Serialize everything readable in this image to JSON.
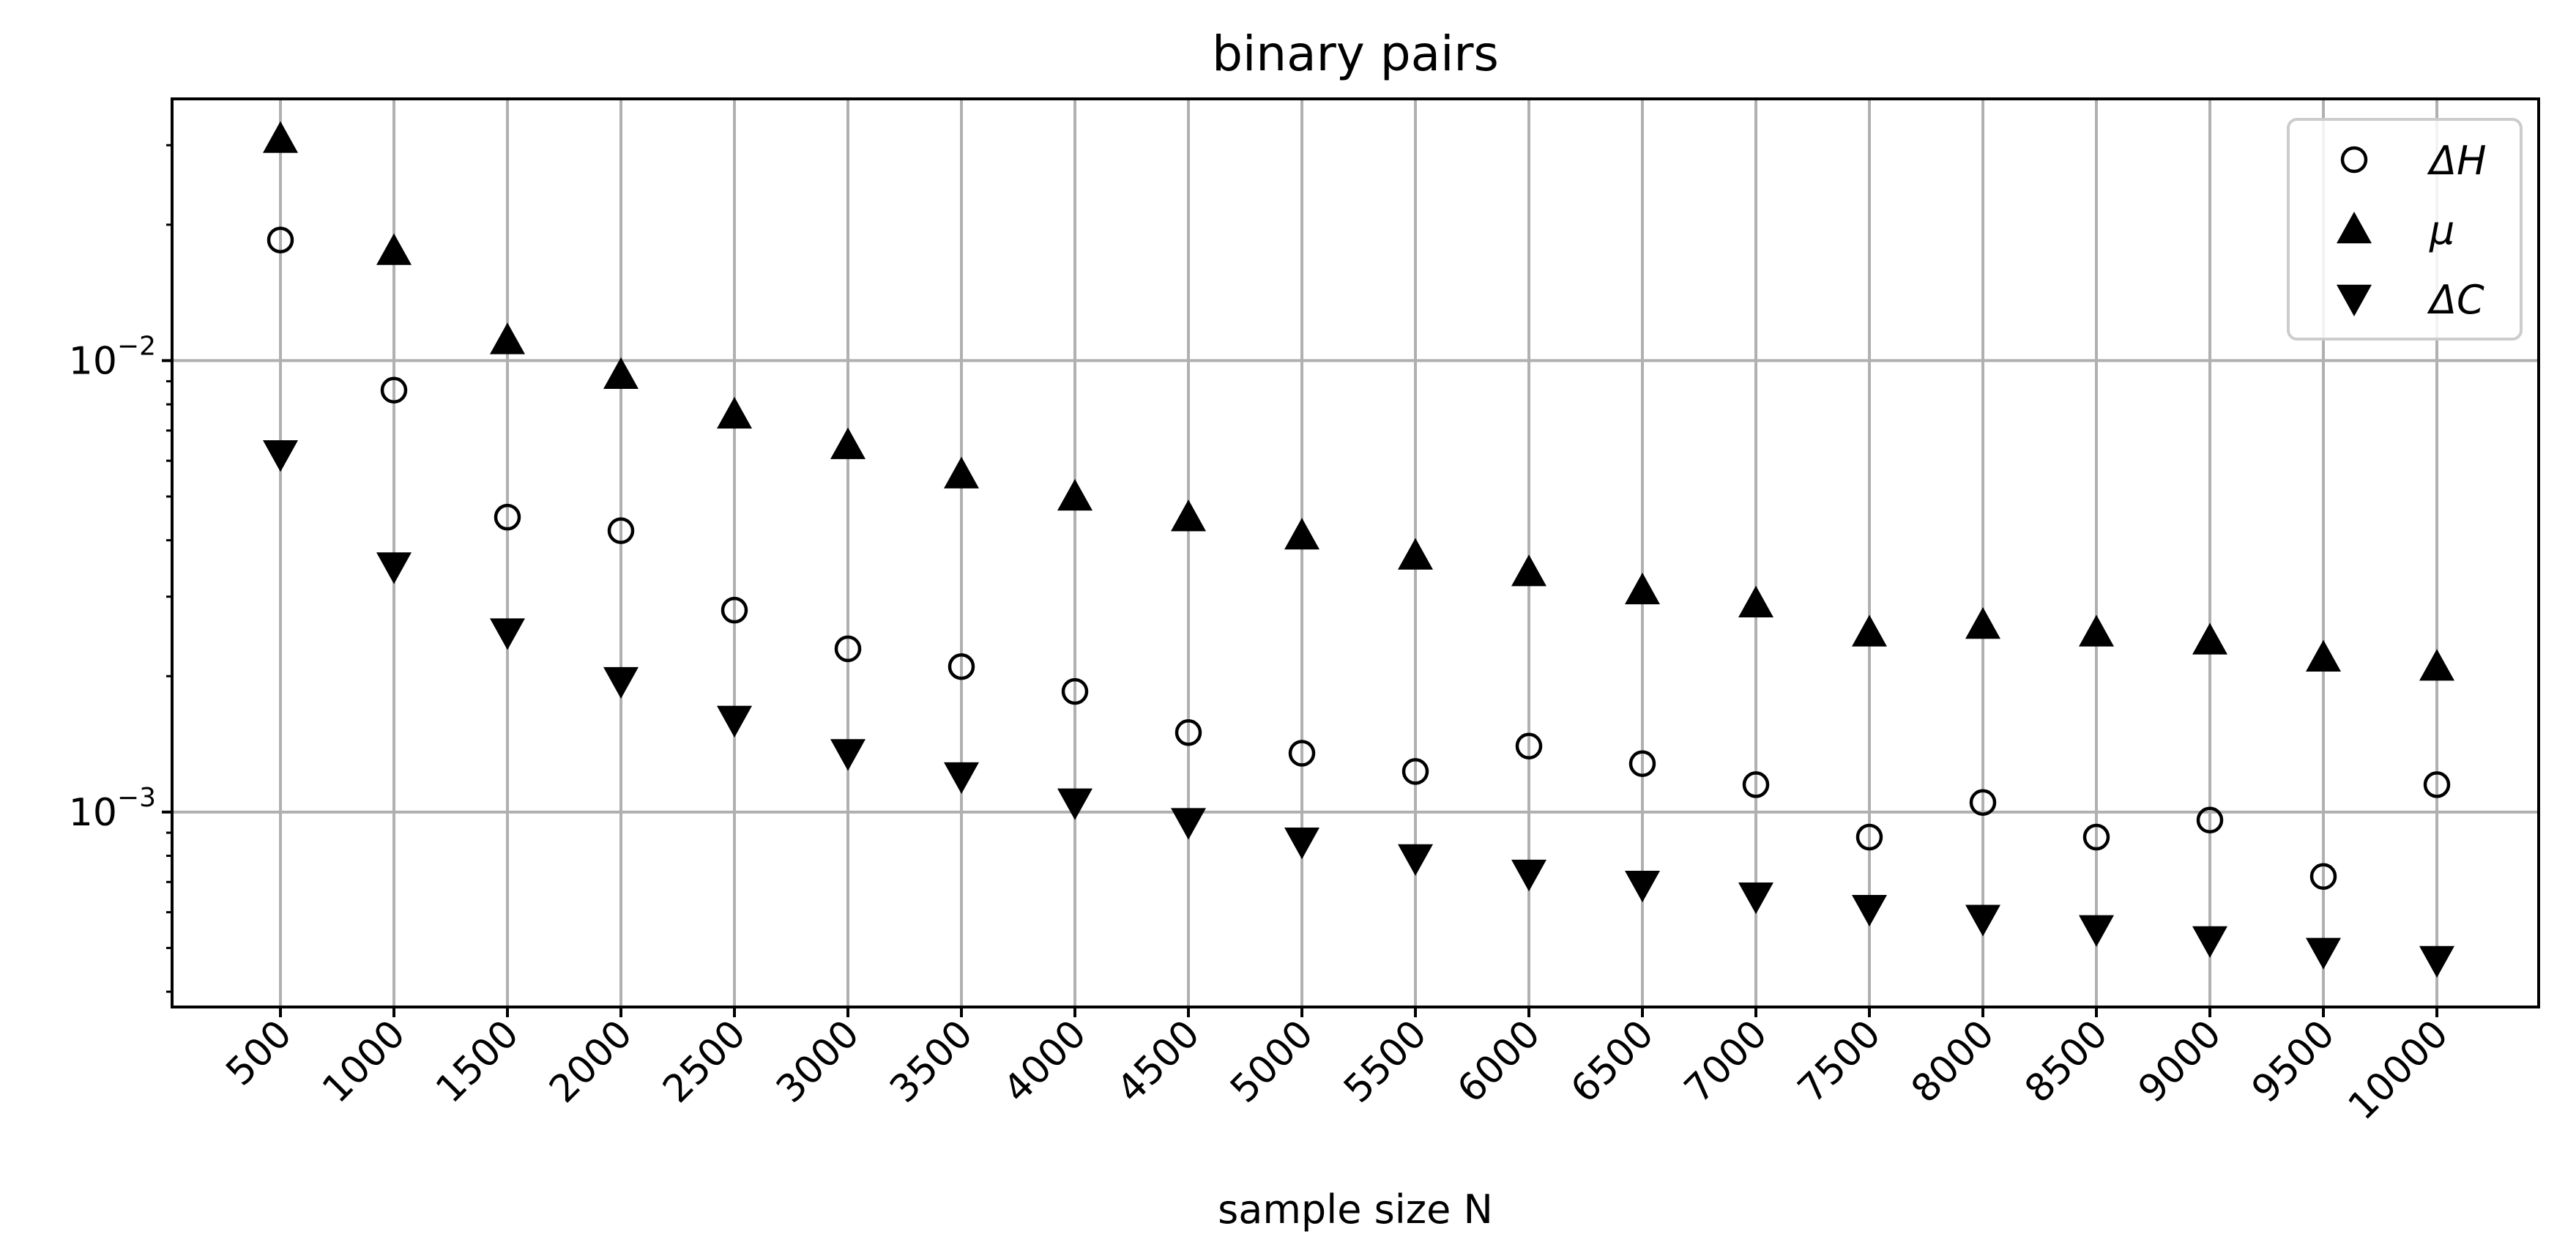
{
  "chart_data": {
    "type": "scatter",
    "title": "binary pairs",
    "xlabel": "sample size N",
    "ylabel": "",
    "yscale": "log",
    "ylim": [
      0.00037,
      0.038
    ],
    "grid": true,
    "legend_position": "top-right",
    "categories": [
      "500",
      "1000",
      "1500",
      "2000",
      "2500",
      "3000",
      "3500",
      "4000",
      "4500",
      "5000",
      "5500",
      "6000",
      "6500",
      "7000",
      "7500",
      "8000",
      "8500",
      "9000",
      "9500",
      "10000"
    ],
    "y_ticks": [
      {
        "base": "10",
        "exp": "−2",
        "value": 0.01
      },
      {
        "base": "10",
        "exp": "−3",
        "value": 0.001
      }
    ],
    "series": [
      {
        "name": "ΔH",
        "marker": "circle-open",
        "color": "#000000",
        "values": [
          0.0185,
          0.0086,
          0.0045,
          0.0042,
          0.0028,
          0.0023,
          0.0021,
          0.00185,
          0.0015,
          0.00135,
          0.00123,
          0.0014,
          0.00128,
          0.00115,
          0.00088,
          0.00105,
          0.00088,
          0.00096,
          0.00072,
          0.00115
        ]
      },
      {
        "name": "μ",
        "marker": "triangle-up",
        "color": "#000000",
        "values": [
          0.031,
          0.0175,
          0.0111,
          0.0093,
          0.0076,
          0.0065,
          0.0056,
          0.005,
          0.0045,
          0.0041,
          0.0037,
          0.0034,
          0.0031,
          0.0029,
          0.0025,
          0.0026,
          0.0025,
          0.0024,
          0.0022,
          0.0021
        ]
      },
      {
        "name": "ΔC",
        "marker": "triangle-down",
        "color": "#000000",
        "values": [
          0.0062,
          0.0035,
          0.0025,
          0.00195,
          0.0016,
          0.00135,
          0.0012,
          0.00105,
          0.00095,
          0.00086,
          0.00079,
          0.00073,
          0.00069,
          0.00065,
          0.00061,
          0.00058,
          0.00055,
          0.00052,
          0.00049,
          0.00047
        ]
      }
    ]
  }
}
